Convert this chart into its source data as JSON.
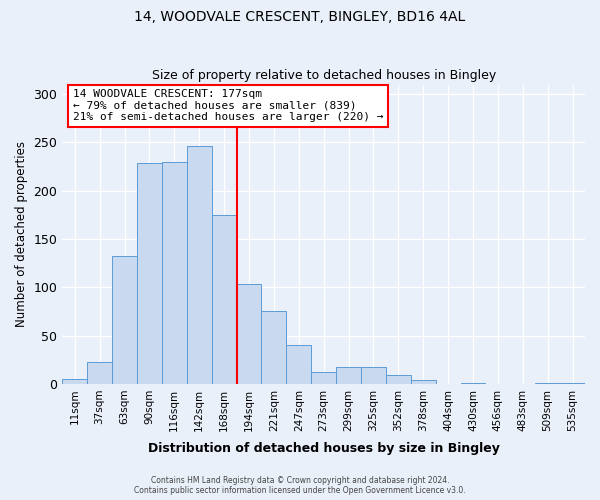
{
  "title": "14, WOODVALE CRESCENT, BINGLEY, BD16 4AL",
  "subtitle": "Size of property relative to detached houses in Bingley",
  "xlabel": "Distribution of detached houses by size in Bingley",
  "ylabel": "Number of detached properties",
  "bar_labels": [
    "11sqm",
    "37sqm",
    "63sqm",
    "90sqm",
    "116sqm",
    "142sqm",
    "168sqm",
    "194sqm",
    "221sqm",
    "247sqm",
    "273sqm",
    "299sqm",
    "325sqm",
    "352sqm",
    "378sqm",
    "404sqm",
    "430sqm",
    "456sqm",
    "483sqm",
    "509sqm",
    "535sqm"
  ],
  "bar_values": [
    5,
    23,
    132,
    229,
    230,
    246,
    175,
    103,
    76,
    40,
    12,
    17,
    18,
    9,
    4,
    0,
    1,
    0,
    0,
    1,
    1
  ],
  "bar_color": "#c9d9f0",
  "bar_edgecolor": "#5b9bd5",
  "vline_x": 7.0,
  "vline_color": "red",
  "annotation_title": "14 WOODVALE CRESCENT: 177sqm",
  "annotation_line1": "← 79% of detached houses are smaller (839)",
  "annotation_line2": "21% of semi-detached houses are larger (220) →",
  "annotation_box_color": "white",
  "annotation_box_edgecolor": "red",
  "ylim": [
    0,
    310
  ],
  "yticks": [
    0,
    50,
    100,
    150,
    200,
    250,
    300
  ],
  "footer1": "Contains HM Land Registry data © Crown copyright and database right 2024.",
  "footer2": "Contains public sector information licensed under the Open Government Licence v3.0.",
  "bg_color": "#eaf0fa",
  "plot_bg_color": "#eaf0fa"
}
